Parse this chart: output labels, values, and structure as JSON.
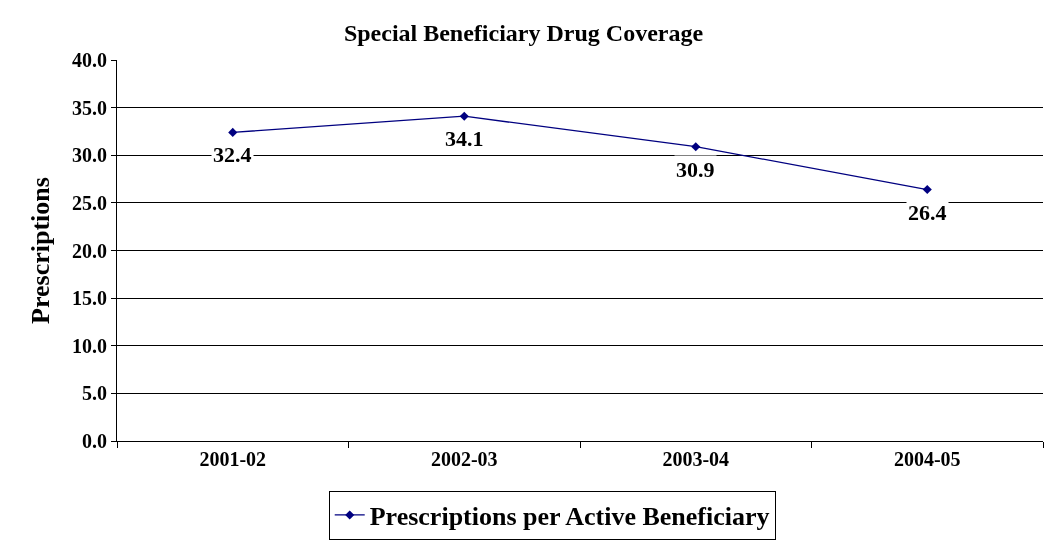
{
  "chart_data": {
    "type": "line",
    "title": "Special Beneficiary Drug Coverage",
    "ylabel": "Prescriptions",
    "categories": [
      "2001-02",
      "2002-03",
      "2003-04",
      "2004-05"
    ],
    "series": [
      {
        "name": "Prescriptions per Active Beneficiary",
        "color": "#000080",
        "values": [
          32.4,
          34.1,
          30.9,
          26.4
        ]
      }
    ],
    "ylim": [
      0,
      40
    ],
    "yticks": [
      {
        "value": 0,
        "label": "0.0"
      },
      {
        "value": 5,
        "label": "5.0"
      },
      {
        "value": 10,
        "label": "10.0"
      },
      {
        "value": 15,
        "label": "15.0"
      },
      {
        "value": 20,
        "label": "20.0"
      },
      {
        "value": 25,
        "label": "25.0"
      },
      {
        "value": 30,
        "label": "30.0"
      },
      {
        "value": 35,
        "label": "35.0"
      },
      {
        "value": 40,
        "label": "40.0"
      }
    ],
    "grid": "y",
    "legend": "bottom",
    "marker": "diamond",
    "line_style": "solid",
    "data_labels": true
  }
}
